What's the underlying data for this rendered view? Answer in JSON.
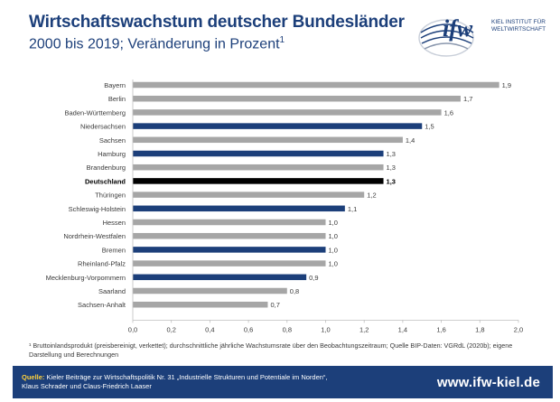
{
  "header": {
    "title": "Wirtschaftswachstum deutscher Bundesländer",
    "subtitle": "2000 bis 2019; Veränderung in Prozent",
    "subtitle_sup": "1"
  },
  "logo": {
    "name": "ifw",
    "line1": "KIEL INSTITUT FÜR",
    "line2": "WELTWIRTSCHAFT"
  },
  "colors": {
    "highlight_blue": "#1c3f7a",
    "gray": "#a6a6a6",
    "black": "#000000",
    "footer_bg": "#1c3f7a",
    "source_label": "#ffd23c"
  },
  "chart_data": {
    "type": "bar",
    "orientation": "horizontal",
    "categories": [
      "Bayern",
      "Berlin",
      "Baden-Württemberg",
      "Niedersachsen",
      "Sachsen",
      "Hamburg",
      "Brandenburg",
      "Deutschland",
      "Thüringen",
      "Schleswig-Holstein",
      "Hessen",
      "Nordrhein-Westfalen",
      "Bremen",
      "Rheinland-Pfalz",
      "Mecklenburg-Vorpommern",
      "Saarland",
      "Sachsen-Anhalt"
    ],
    "values": [
      1.9,
      1.7,
      1.6,
      1.5,
      1.4,
      1.3,
      1.3,
      1.3,
      1.2,
      1.1,
      1.0,
      1.0,
      1.0,
      1.0,
      0.9,
      0.8,
      0.7
    ],
    "value_labels": [
      "1,9",
      "1,7",
      "1,6",
      "1,5",
      "1,4",
      "1,3",
      "1,3",
      "1,3",
      "1,2",
      "1,1",
      "1,0",
      "1,0",
      "1,0",
      "1,0",
      "0,9",
      "0,8",
      "0,7"
    ],
    "bar_colors": [
      "gray",
      "gray",
      "gray",
      "blue",
      "gray",
      "blue",
      "gray",
      "black",
      "gray",
      "blue",
      "gray",
      "gray",
      "blue",
      "gray",
      "blue",
      "gray",
      "gray"
    ],
    "bold_category": "Deutschland",
    "xlim": [
      0,
      2.0
    ],
    "xticks": [
      "0,0",
      "0,2",
      "0,4",
      "0,6",
      "0,8",
      "1,0",
      "1,2",
      "1,4",
      "1,6",
      "1,8",
      "2,0"
    ],
    "grid": false
  },
  "footnote": "¹ Bruttoinlandsprodukt (preisbereinigt, verkettet); durchschnittliche jährliche Wachstumsrate über den Beobachtungszeitraum; Quelle BIP-Daten: VGRdL (2020b); eigene Darstellung und Berechnungen",
  "footer": {
    "source_label": "Quelle:",
    "source_line1": "Kieler Beiträge zur Wirtschaftspolitik Nr. 31 „Industrielle Strukturen und Potentiale im Norden“,",
    "source_line2": "Klaus Schrader und Claus-Friedrich Laaser",
    "url": "www.ifw-kiel.de"
  }
}
